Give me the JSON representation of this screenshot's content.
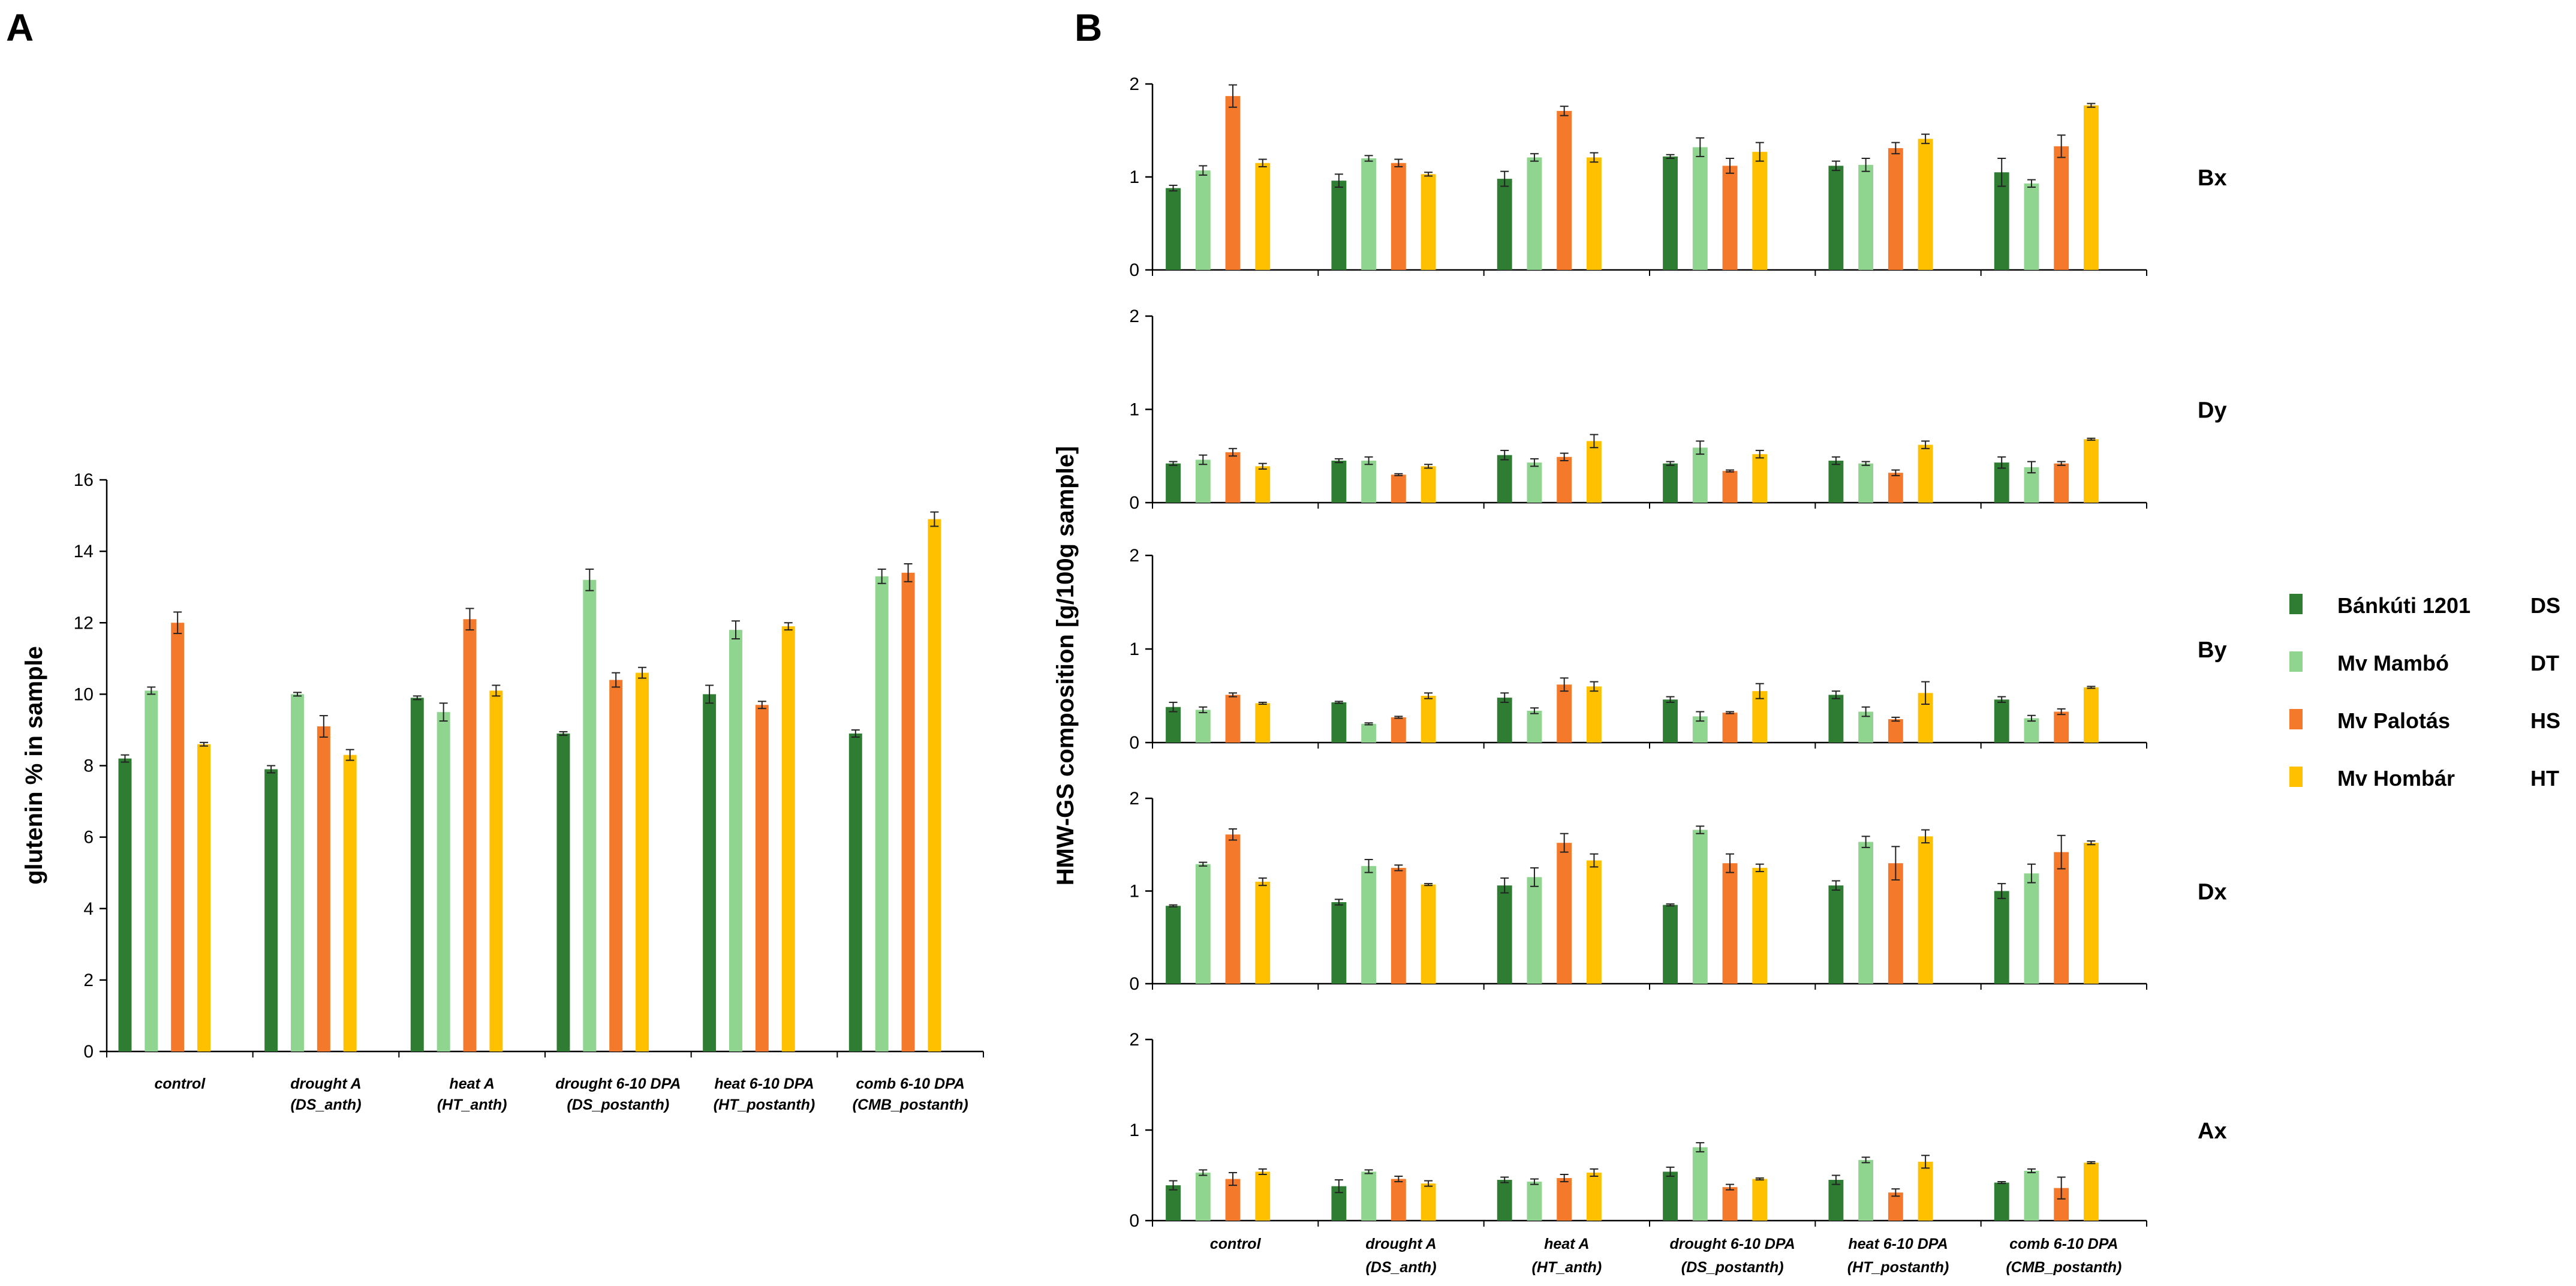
{
  "panels": {
    "a": "A",
    "b": "B"
  },
  "series": [
    {
      "name": "Bánkúti 1201",
      "tag": "DS",
      "color": "#2e7d32"
    },
    {
      "name": "Mv Mambó",
      "tag": "DT",
      "color": "#8fd48f"
    },
    {
      "name": "Mv Palotás",
      "tag": "HS",
      "color": "#f5792a"
    },
    {
      "name": "Mv Hombár",
      "tag": "HT",
      "color": "#ffc000"
    }
  ],
  "categories": [
    {
      "l1": "control",
      "l2": ""
    },
    {
      "l1": "drought A",
      "l2": "(DS_anth)"
    },
    {
      "l1": "heat A",
      "l2": "(HT_anth)"
    },
    {
      "l1": "drought 6-10 DPA",
      "l2": "(DS_postanth)"
    },
    {
      "l1": "heat 6-10 DPA",
      "l2": "(HT_postanth)"
    },
    {
      "l1": "comb 6-10 DPA",
      "l2": "(CMB_postanth)"
    }
  ],
  "chart_data": [
    {
      "type": "bar",
      "panel": "A",
      "ylabel": "glutenin % in sample",
      "ylim": [
        0,
        16
      ],
      "yticks": [
        0,
        2,
        4,
        6,
        8,
        10,
        12,
        14,
        16
      ],
      "values": [
        [
          8.2,
          10.1,
          12.0,
          8.6
        ],
        [
          7.9,
          10.0,
          9.1,
          8.3
        ],
        [
          9.9,
          9.5,
          12.1,
          10.1
        ],
        [
          8.9,
          13.2,
          10.4,
          10.6
        ],
        [
          10.0,
          11.8,
          9.7,
          11.9
        ],
        [
          8.9,
          13.3,
          13.4,
          14.9
        ]
      ],
      "errors": [
        [
          0.1,
          0.1,
          0.3,
          0.05
        ],
        [
          0.1,
          0.05,
          0.3,
          0.15
        ],
        [
          0.05,
          0.25,
          0.3,
          0.15
        ],
        [
          0.05,
          0.3,
          0.2,
          0.15
        ],
        [
          0.25,
          0.25,
          0.1,
          0.1
        ],
        [
          0.1,
          0.2,
          0.25,
          0.2
        ]
      ]
    },
    {
      "type": "bar",
      "panel": "B",
      "ylabel": "HMW-GS composition [g/100g sample]",
      "subplots": [
        {
          "label": "Bx",
          "ylim": [
            0,
            2
          ],
          "yticks": [
            0,
            1,
            2
          ],
          "values": [
            [
              0.88,
              1.07,
              1.87,
              1.15
            ],
            [
              0.96,
              1.2,
              1.15,
              1.03
            ],
            [
              0.98,
              1.21,
              1.71,
              1.21
            ],
            [
              1.22,
              1.32,
              1.12,
              1.27
            ],
            [
              1.12,
              1.13,
              1.31,
              1.41
            ],
            [
              1.05,
              0.93,
              1.33,
              1.77
            ]
          ],
          "errors": [
            [
              0.03,
              0.05,
              0.12,
              0.04
            ],
            [
              0.07,
              0.03,
              0.04,
              0.02
            ],
            [
              0.08,
              0.04,
              0.05,
              0.05
            ],
            [
              0.02,
              0.1,
              0.08,
              0.1
            ],
            [
              0.05,
              0.07,
              0.06,
              0.05
            ],
            [
              0.15,
              0.04,
              0.12,
              0.02
            ]
          ]
        },
        {
          "label": "Dy",
          "ylim": [
            0,
            2
          ],
          "yticks": [
            0,
            1,
            2
          ],
          "values": [
            [
              0.42,
              0.46,
              0.54,
              0.39
            ],
            [
              0.45,
              0.45,
              0.3,
              0.39
            ],
            [
              0.51,
              0.43,
              0.49,
              0.66
            ],
            [
              0.42,
              0.59,
              0.34,
              0.52
            ],
            [
              0.45,
              0.42,
              0.32,
              0.62
            ],
            [
              0.43,
              0.38,
              0.42,
              0.68
            ]
          ],
          "errors": [
            [
              0.02,
              0.05,
              0.04,
              0.03
            ],
            [
              0.02,
              0.04,
              0.01,
              0.02
            ],
            [
              0.05,
              0.04,
              0.04,
              0.07
            ],
            [
              0.02,
              0.07,
              0.01,
              0.04
            ],
            [
              0.04,
              0.02,
              0.03,
              0.04
            ],
            [
              0.06,
              0.06,
              0.02,
              0.01
            ]
          ]
        },
        {
          "label": "By",
          "ylim": [
            0,
            2
          ],
          "yticks": [
            0,
            1,
            2
          ],
          "values": [
            [
              0.38,
              0.35,
              0.51,
              0.42
            ],
            [
              0.43,
              0.2,
              0.27,
              0.5
            ],
            [
              0.48,
              0.34,
              0.62,
              0.6
            ],
            [
              0.46,
              0.28,
              0.32,
              0.55
            ],
            [
              0.51,
              0.33,
              0.25,
              0.53
            ],
            [
              0.46,
              0.26,
              0.33,
              0.59
            ]
          ],
          "errors": [
            [
              0.05,
              0.03,
              0.02,
              0.01
            ],
            [
              0.01,
              0.01,
              0.01,
              0.03
            ],
            [
              0.05,
              0.03,
              0.07,
              0.05
            ],
            [
              0.03,
              0.05,
              0.01,
              0.08
            ],
            [
              0.04,
              0.05,
              0.02,
              0.12
            ],
            [
              0.03,
              0.03,
              0.03,
              0.01
            ]
          ]
        },
        {
          "label": "Dx",
          "ylim": [
            0,
            2
          ],
          "yticks": [
            0,
            1,
            2
          ],
          "values": [
            [
              0.84,
              1.29,
              1.61,
              1.1
            ],
            [
              0.88,
              1.27,
              1.25,
              1.07
            ],
            [
              1.06,
              1.15,
              1.52,
              1.33
            ],
            [
              0.85,
              1.66,
              1.3,
              1.25
            ],
            [
              1.06,
              1.53,
              1.3,
              1.59
            ],
            [
              1.0,
              1.19,
              1.42,
              1.52
            ]
          ],
          "errors": [
            [
              0.01,
              0.02,
              0.06,
              0.04
            ],
            [
              0.03,
              0.07,
              0.03,
              0.01
            ],
            [
              0.08,
              0.1,
              0.1,
              0.07
            ],
            [
              0.01,
              0.04,
              0.1,
              0.04
            ],
            [
              0.05,
              0.06,
              0.18,
              0.07
            ],
            [
              0.08,
              0.1,
              0.18,
              0.02
            ]
          ]
        },
        {
          "label": "Ax",
          "ylim": [
            0,
            2
          ],
          "yticks": [
            0,
            1,
            2
          ],
          "values": [
            [
              0.39,
              0.53,
              0.46,
              0.54
            ],
            [
              0.38,
              0.54,
              0.46,
              0.41
            ],
            [
              0.45,
              0.43,
              0.47,
              0.53
            ],
            [
              0.54,
              0.81,
              0.37,
              0.46
            ],
            [
              0.45,
              0.67,
              0.31,
              0.65
            ],
            [
              0.42,
              0.55,
              0.36,
              0.64
            ]
          ],
          "errors": [
            [
              0.05,
              0.03,
              0.07,
              0.03
            ],
            [
              0.07,
              0.02,
              0.03,
              0.03
            ],
            [
              0.03,
              0.03,
              0.04,
              0.04
            ],
            [
              0.05,
              0.05,
              0.03,
              0.01
            ],
            [
              0.05,
              0.03,
              0.04,
              0.07
            ],
            [
              0.01,
              0.02,
              0.12,
              0.01
            ]
          ]
        }
      ]
    }
  ]
}
